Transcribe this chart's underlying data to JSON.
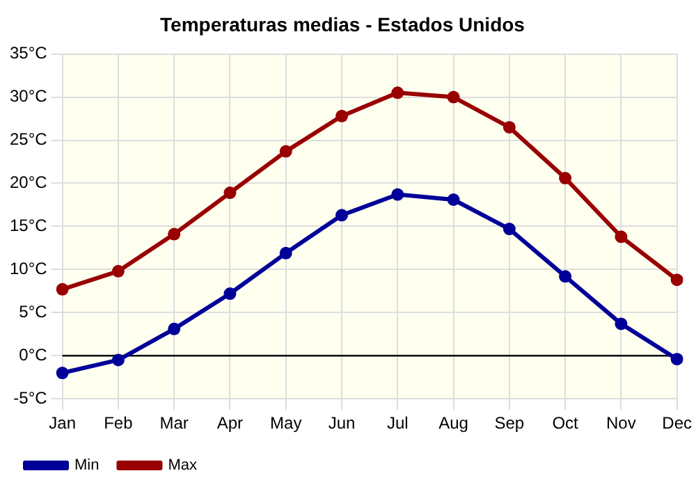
{
  "chart_data": {
    "type": "line",
    "title": "Temperaturas medias - Estados Unidos",
    "categories": [
      "Jan",
      "Feb",
      "Mar",
      "Apr",
      "May",
      "Jun",
      "Jul",
      "Aug",
      "Sep",
      "Oct",
      "Nov",
      "Dec"
    ],
    "series": [
      {
        "name": "Min",
        "color": "#000099",
        "values": [
          -2.0,
          -0.5,
          3.1,
          7.2,
          11.9,
          16.3,
          18.7,
          18.1,
          14.7,
          9.2,
          3.7,
          -0.4
        ]
      },
      {
        "name": "Max",
        "color": "#990000",
        "values": [
          7.7,
          9.8,
          14.1,
          18.9,
          23.7,
          27.8,
          30.5,
          30.0,
          26.5,
          20.6,
          13.8,
          8.8
        ]
      }
    ],
    "ylim": [
      -5,
      35
    ],
    "yticks": [
      {
        "value": -5,
        "label": "-5°C"
      },
      {
        "value": 0,
        "label": "0°C"
      },
      {
        "value": 5,
        "label": "5°C"
      },
      {
        "value": 10,
        "label": "10°C"
      },
      {
        "value": 15,
        "label": "15°C"
      },
      {
        "value": 20,
        "label": "20°C"
      },
      {
        "value": 25,
        "label": "25°C"
      },
      {
        "value": 30,
        "label": "30°C"
      },
      {
        "value": 35,
        "label": "35°C"
      }
    ],
    "ref_lines": [
      {
        "axis": "y",
        "value": 0,
        "color": "#000000"
      }
    ],
    "grid": true,
    "legend": "bottom left",
    "marker": "circle",
    "line_style": "solid"
  }
}
